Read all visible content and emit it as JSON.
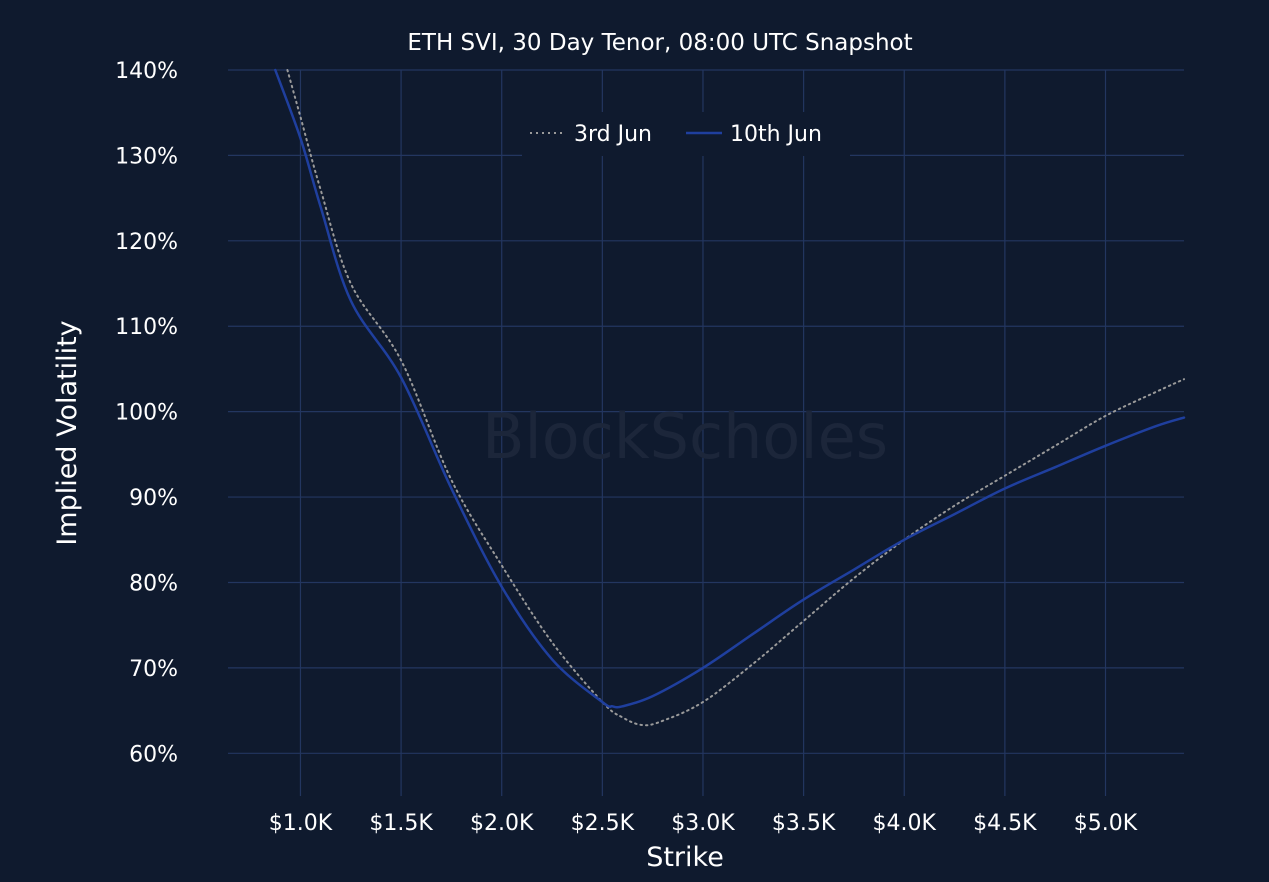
{
  "colors": {
    "background": "#0f1a2e",
    "grid": "#233660",
    "series_3rd_jun": "#9a9a9a",
    "series_10th_jun": "#1f3f9e",
    "text": "#ffffff",
    "watermark": "#1c263a"
  },
  "watermark": "BlockScholes",
  "chart_data": {
    "type": "line",
    "title": "ETH SVI, 30 Day Tenor, 08:00 UTC Snapshot",
    "xlabel": "Strike",
    "ylabel": "Implied Volatility",
    "xlim": [
      640,
      5390
    ],
    "ylim": [
      55,
      140
    ],
    "x_ticks": [
      1000,
      1500,
      2000,
      2500,
      3000,
      3500,
      4000,
      4500,
      5000
    ],
    "x_tick_labels": [
      "$1.0K",
      "$1.5K",
      "$2.0K",
      "$2.5K",
      "$3.0K",
      "$3.5K",
      "$4.0K",
      "$4.5K",
      "$5.0K"
    ],
    "y_ticks": [
      60,
      70,
      80,
      90,
      100,
      110,
      120,
      130,
      140
    ],
    "y_tick_labels": [
      "60%",
      "70%",
      "80%",
      "90%",
      "100%",
      "110%",
      "120%",
      "130%",
      "140%"
    ],
    "grid": true,
    "legend_position": "top-center",
    "series": [
      {
        "name": "3rd Jun",
        "style": "dotted",
        "points": [
          [
            935,
            140
          ],
          [
            1000,
            134.5
          ],
          [
            1100,
            126
          ],
          [
            1250,
            115
          ],
          [
            1500,
            106
          ],
          [
            1750,
            92
          ],
          [
            2000,
            82
          ],
          [
            2250,
            73
          ],
          [
            2500,
            66
          ],
          [
            2600,
            64.2
          ],
          [
            2700,
            63.3
          ],
          [
            2800,
            63.8
          ],
          [
            3000,
            66
          ],
          [
            3250,
            70.5
          ],
          [
            3500,
            75.5
          ],
          [
            3750,
            80.5
          ],
          [
            4000,
            85
          ],
          [
            4250,
            89
          ],
          [
            4500,
            92.5
          ],
          [
            4750,
            96
          ],
          [
            5000,
            99.5
          ],
          [
            5250,
            102.3
          ],
          [
            5390,
            103.8
          ]
        ]
      },
      {
        "name": "10th Jun",
        "style": "solid",
        "points": [
          [
            875,
            140
          ],
          [
            1000,
            132
          ],
          [
            1100,
            124
          ],
          [
            1250,
            113
          ],
          [
            1500,
            104
          ],
          [
            1750,
            91
          ],
          [
            2000,
            79.5
          ],
          [
            2250,
            71
          ],
          [
            2500,
            66
          ],
          [
            2550,
            65.5
          ],
          [
            2600,
            65.5
          ],
          [
            2750,
            66.7
          ],
          [
            3000,
            70
          ],
          [
            3250,
            74
          ],
          [
            3500,
            78
          ],
          [
            3750,
            81.5
          ],
          [
            4000,
            85
          ],
          [
            4250,
            88
          ],
          [
            4500,
            91
          ],
          [
            4750,
            93.5
          ],
          [
            5000,
            96
          ],
          [
            5250,
            98.3
          ],
          [
            5390,
            99.3
          ]
        ]
      }
    ]
  }
}
